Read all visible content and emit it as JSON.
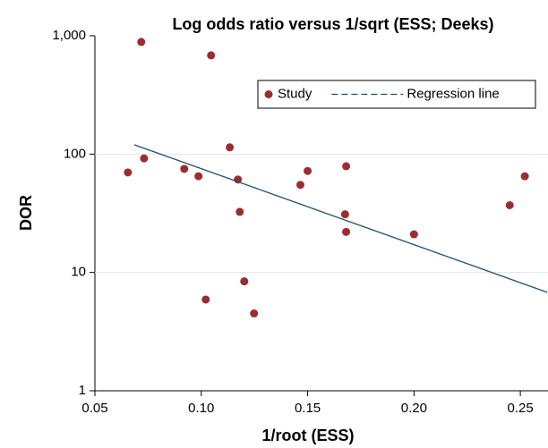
{
  "chart_data": {
    "type": "scatter",
    "title": "Log odds ratio versus 1/sqrt (ESS; Deeks)",
    "x_label": "1/root (ESS)",
    "y_label": "DOR",
    "xlim": [
      0.05,
      0.263
    ],
    "ylim": [
      1,
      1000
    ],
    "y_scale": "log",
    "grid": true,
    "legend": "upper right",
    "xticks": [
      {
        "value": 0.05,
        "label": "0.05"
      },
      {
        "value": 0.1,
        "label": "0.10"
      },
      {
        "value": 0.15,
        "label": "0.15"
      },
      {
        "value": 0.2,
        "label": "0.20"
      },
      {
        "value": 0.25,
        "label": "0.25"
      }
    ],
    "yticks": [
      1,
      10,
      100,
      {
        "value": 1000,
        "label": "1,000"
      }
    ],
    "series": [
      {
        "name": "Study",
        "type": "scatter",
        "color": "#9b2d30",
        "x": [
          0.0718,
          0.1046,
          0.0655,
          0.0731,
          0.092,
          0.0987,
          0.1021,
          0.1134,
          0.1172,
          0.1181,
          0.1202,
          0.1248,
          0.1466,
          0.15,
          0.1681,
          0.1676,
          0.1681,
          0.2,
          0.245,
          0.2521
        ],
        "values": [
          887,
          683,
          70,
          92,
          75,
          65,
          5.9,
          114,
          61,
          32.5,
          8.4,
          4.5,
          55,
          72,
          79,
          31,
          22,
          21,
          37,
          65
        ]
      },
      {
        "name": "Regression line",
        "type": "line",
        "color": "#1f4e6e",
        "x": [
          0.0685,
          0.2626
        ],
        "values": [
          120,
          6.8
        ]
      }
    ]
  }
}
